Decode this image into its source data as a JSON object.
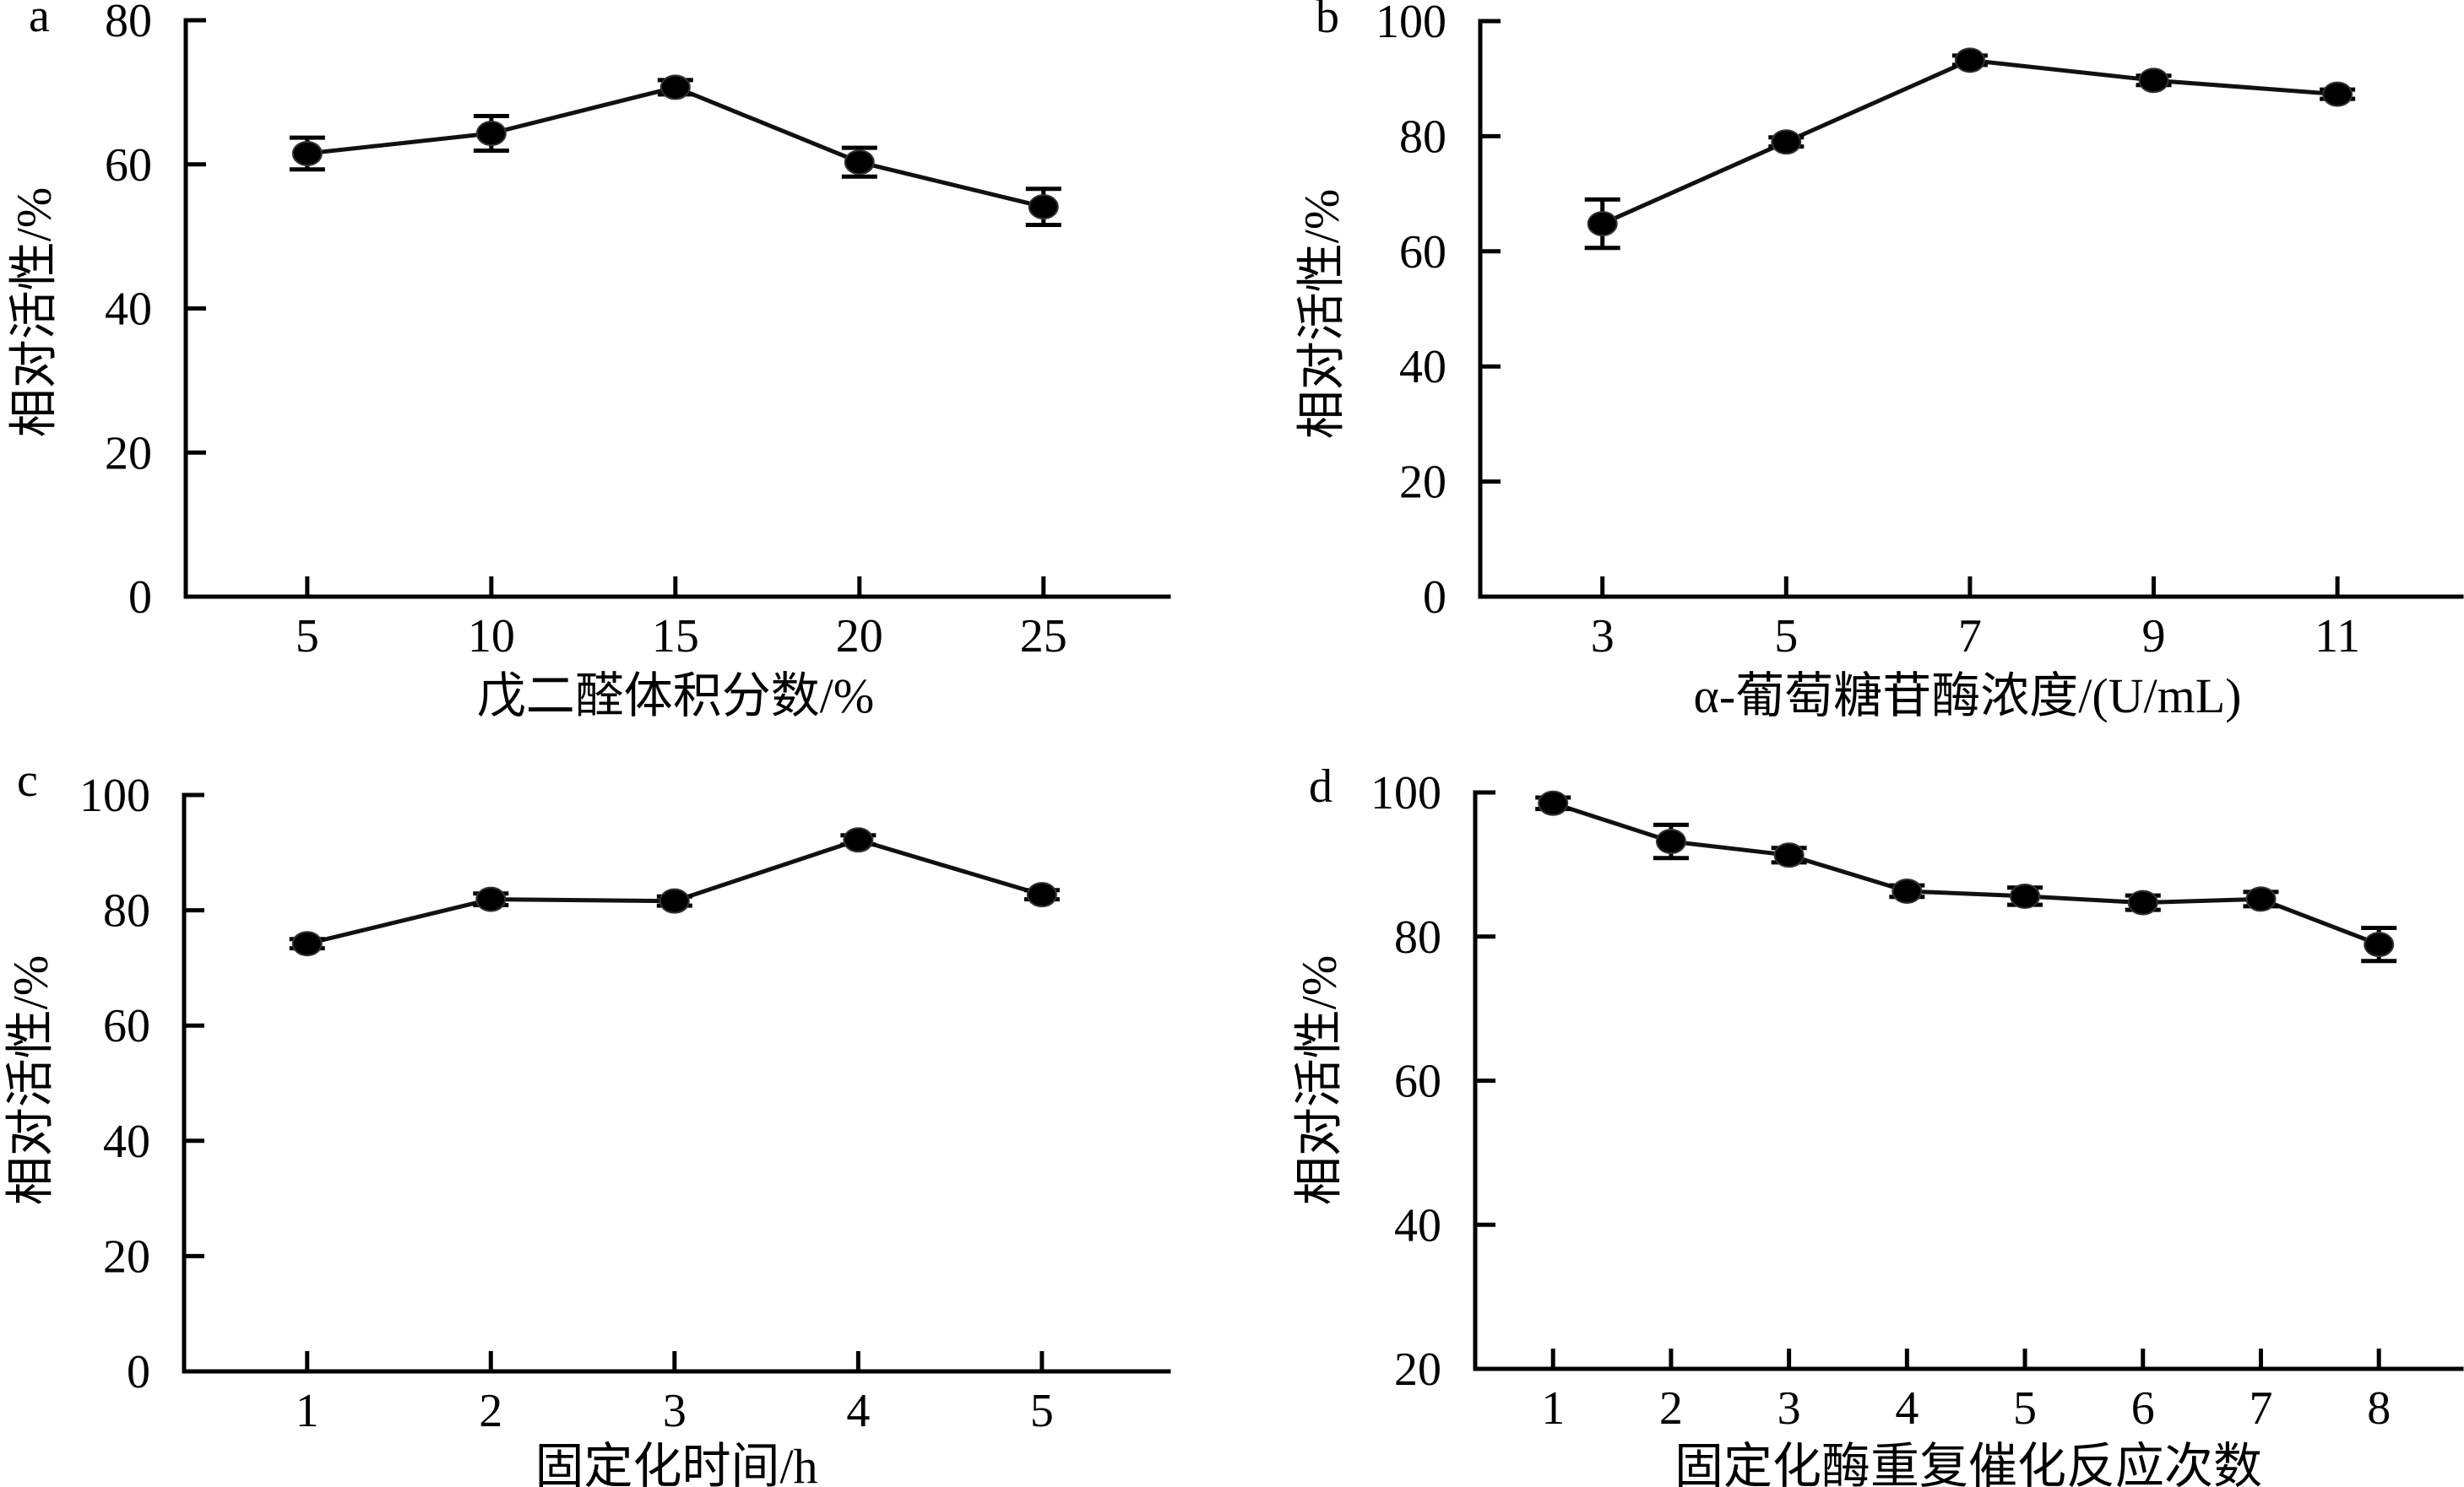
{
  "chart_data": [
    {
      "panel_label": "a",
      "type": "line",
      "xlabel": "戊二醛体积分数/%",
      "ylabel": "相对活性/%",
      "x": [
        5,
        10,
        15,
        20,
        25
      ],
      "y": [
        61.5,
        64.3,
        70.7,
        60.3,
        54.1
      ],
      "yerr": [
        2.2,
        2.4,
        1.0,
        2.0,
        2.5
      ],
      "xticks": [
        5,
        10,
        15,
        20,
        25
      ],
      "yticks": [
        0,
        20,
        40,
        60,
        80
      ],
      "xlim": [
        1.7,
        28.4
      ],
      "ylim": [
        0,
        80
      ],
      "grid": false,
      "legend": "none",
      "marker": "filled-circle",
      "color": "#000000"
    },
    {
      "panel_label": "b",
      "type": "line",
      "xlabel": "α-葡萄糖苷酶浓度/(U/mL)",
      "ylabel": "相对活性/%",
      "x": [
        3,
        5,
        7,
        9,
        11
      ],
      "y": [
        64.8,
        79.0,
        93.2,
        89.7,
        87.3
      ],
      "yerr": [
        4.2,
        0.8,
        0.8,
        0.8,
        0.8
      ],
      "xticks": [
        3,
        5,
        7,
        9,
        11
      ],
      "yticks": [
        0,
        20,
        40,
        60,
        80,
        100
      ],
      "xlim": [
        1.67,
        12.35
      ],
      "ylim": [
        0,
        100
      ],
      "grid": false,
      "legend": "none",
      "marker": "filled-circle",
      "color": "#000000"
    },
    {
      "panel_label": "c",
      "type": "line",
      "xlabel": "固定化时间/h",
      "ylabel": "相对活性/%",
      "x": [
        1,
        2,
        3,
        4,
        5
      ],
      "y": [
        74.2,
        81.9,
        81.6,
        92.2,
        82.7
      ],
      "yerr": [
        0.8,
        1.0,
        0.8,
        0.8,
        0.8
      ],
      "xticks": [
        1,
        2,
        3,
        4,
        5
      ],
      "yticks": [
        0,
        20,
        40,
        60,
        80,
        100
      ],
      "xlim": [
        0.33,
        5.69
      ],
      "ylim": [
        0,
        100
      ],
      "grid": false,
      "legend": "none",
      "marker": "filled-circle",
      "color": "#000000"
    },
    {
      "panel_label": "d",
      "type": "line",
      "xlabel": "固定化酶重复催化反应次数",
      "ylabel": "相对活性/%",
      "x": [
        1,
        2,
        3,
        4,
        5,
        6,
        7,
        8
      ],
      "y": [
        98.5,
        93.2,
        91.3,
        86.3,
        85.6,
        84.7,
        85.2,
        78.9
      ],
      "yerr": [
        0.8,
        2.3,
        1.0,
        0.8,
        1.2,
        1.0,
        1.0,
        2.3
      ],
      "xticks": [
        1,
        2,
        3,
        4,
        5,
        6,
        7,
        8
      ],
      "yticks": [
        20,
        40,
        60,
        80,
        100
      ],
      "xlim": [
        0.34,
        8.7
      ],
      "ylim": [
        20,
        100
      ],
      "grid": false,
      "legend": "none",
      "marker": "filled-circle",
      "color": "#000000"
    }
  ]
}
